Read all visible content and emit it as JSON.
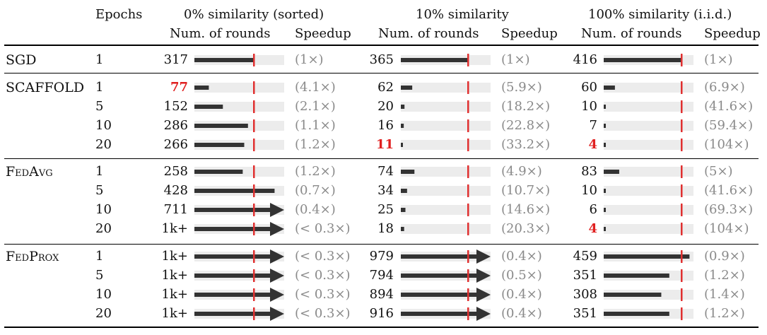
{
  "header": {
    "epochs": "Epochs",
    "groups": [
      {
        "title": "0% similarity (sorted)",
        "rounds": "Num. of rounds",
        "speedup": "Speedup"
      },
      {
        "title": "10% similarity",
        "rounds": "Num. of rounds",
        "speedup": "Speedup"
      },
      {
        "title": "100% similarity (i.i.d.)",
        "rounds": "Num. of rounds",
        "speedup": "Speedup"
      }
    ]
  },
  "sgd_baseline_rounds": [
    317,
    365,
    416
  ],
  "colors": {
    "bar": "#333333",
    "track": "#ececec",
    "marker": "#e03030",
    "best": "#e02020",
    "speed": "#8a8a8a"
  },
  "methods": [
    {
      "name": "SGD",
      "rows": [
        {
          "epochs": "1",
          "cells": [
            {
              "rounds": "317",
              "value": 317,
              "speedup": "(1×)",
              "best": false,
              "overflow": false
            },
            {
              "rounds": "365",
              "value": 365,
              "speedup": "(1×)",
              "best": false,
              "overflow": false
            },
            {
              "rounds": "416",
              "value": 416,
              "speedup": "(1×)",
              "best": false,
              "overflow": false
            }
          ]
        }
      ]
    },
    {
      "name": "SCAFFOLD",
      "rows": [
        {
          "epochs": "1",
          "cells": [
            {
              "rounds": "77",
              "value": 77,
              "speedup": "(4.1×)",
              "best": true,
              "overflow": false
            },
            {
              "rounds": "62",
              "value": 62,
              "speedup": "(5.9×)",
              "best": false,
              "overflow": false
            },
            {
              "rounds": "60",
              "value": 60,
              "speedup": "(6.9×)",
              "best": false,
              "overflow": false
            }
          ]
        },
        {
          "epochs": "5",
          "cells": [
            {
              "rounds": "152",
              "value": 152,
              "speedup": "(2.1×)",
              "best": false,
              "overflow": false
            },
            {
              "rounds": "20",
              "value": 20,
              "speedup": "(18.2×)",
              "best": false,
              "overflow": false
            },
            {
              "rounds": "10",
              "value": 10,
              "speedup": "(41.6×)",
              "best": false,
              "overflow": false
            }
          ]
        },
        {
          "epochs": "10",
          "cells": [
            {
              "rounds": "286",
              "value": 286,
              "speedup": "(1.1×)",
              "best": false,
              "overflow": false
            },
            {
              "rounds": "16",
              "value": 16,
              "speedup": "(22.8×)",
              "best": false,
              "overflow": false
            },
            {
              "rounds": "7",
              "value": 7,
              "speedup": "(59.4×)",
              "best": false,
              "overflow": false
            }
          ]
        },
        {
          "epochs": "20",
          "cells": [
            {
              "rounds": "266",
              "value": 266,
              "speedup": "(1.2×)",
              "best": false,
              "overflow": false
            },
            {
              "rounds": "11",
              "value": 11,
              "speedup": "(33.2×)",
              "best": true,
              "overflow": false
            },
            {
              "rounds": "4",
              "value": 4,
              "speedup": "(104×)",
              "best": true,
              "overflow": false
            }
          ]
        }
      ]
    },
    {
      "name": "FedAvg",
      "rows": [
        {
          "epochs": "1",
          "cells": [
            {
              "rounds": "258",
              "value": 258,
              "speedup": "(1.2×)",
              "best": false,
              "overflow": false
            },
            {
              "rounds": "74",
              "value": 74,
              "speedup": "(4.9×)",
              "best": false,
              "overflow": false
            },
            {
              "rounds": "83",
              "value": 83,
              "speedup": "(5×)",
              "best": false,
              "overflow": false
            }
          ]
        },
        {
          "epochs": "5",
          "cells": [
            {
              "rounds": "428",
              "value": 428,
              "speedup": "(0.7×)",
              "best": false,
              "overflow": false
            },
            {
              "rounds": "34",
              "value": 34,
              "speedup": "(10.7×)",
              "best": false,
              "overflow": false
            },
            {
              "rounds": "10",
              "value": 10,
              "speedup": "(41.6×)",
              "best": false,
              "overflow": false
            }
          ]
        },
        {
          "epochs": "10",
          "cells": [
            {
              "rounds": "711",
              "value": 711,
              "speedup": "(0.4×)",
              "best": false,
              "overflow": true
            },
            {
              "rounds": "25",
              "value": 25,
              "speedup": "(14.6×)",
              "best": false,
              "overflow": false
            },
            {
              "rounds": "6",
              "value": 6,
              "speedup": "(69.3×)",
              "best": false,
              "overflow": false
            }
          ]
        },
        {
          "epochs": "20",
          "cells": [
            {
              "rounds": "1k+",
              "value": 1000,
              "speedup": "(< 0.3×)",
              "best": false,
              "overflow": true
            },
            {
              "rounds": "18",
              "value": 18,
              "speedup": "(20.3×)",
              "best": false,
              "overflow": false
            },
            {
              "rounds": "4",
              "value": 4,
              "speedup": "(104×)",
              "best": true,
              "overflow": false
            }
          ]
        }
      ]
    },
    {
      "name": "FedProx",
      "rows": [
        {
          "epochs": "1",
          "cells": [
            {
              "rounds": "1k+",
              "value": 1000,
              "speedup": "(< 0.3×)",
              "best": false,
              "overflow": true
            },
            {
              "rounds": "979",
              "value": 979,
              "speedup": "(0.4×)",
              "best": false,
              "overflow": true
            },
            {
              "rounds": "459",
              "value": 459,
              "speedup": "(0.9×)",
              "best": false,
              "overflow": false
            }
          ]
        },
        {
          "epochs": "5",
          "cells": [
            {
              "rounds": "1k+",
              "value": 1000,
              "speedup": "(< 0.3×)",
              "best": false,
              "overflow": true
            },
            {
              "rounds": "794",
              "value": 794,
              "speedup": "(0.5×)",
              "best": false,
              "overflow": true
            },
            {
              "rounds": "351",
              "value": 351,
              "speedup": "(1.2×)",
              "best": false,
              "overflow": false
            }
          ]
        },
        {
          "epochs": "10",
          "cells": [
            {
              "rounds": "1k+",
              "value": 1000,
              "speedup": "(< 0.3×)",
              "best": false,
              "overflow": true
            },
            {
              "rounds": "894",
              "value": 894,
              "speedup": "(0.4×)",
              "best": false,
              "overflow": true
            },
            {
              "rounds": "308",
              "value": 308,
              "speedup": "(1.4×)",
              "best": false,
              "overflow": false
            }
          ]
        },
        {
          "epochs": "20",
          "cells": [
            {
              "rounds": "1k+",
              "value": 1000,
              "speedup": "(< 0.3×)",
              "best": false,
              "overflow": true
            },
            {
              "rounds": "916",
              "value": 916,
              "speedup": "(0.4×)",
              "best": false,
              "overflow": true
            },
            {
              "rounds": "351",
              "value": 351,
              "speedup": "(1.2×)",
              "best": false,
              "overflow": false
            }
          ]
        }
      ]
    }
  ]
}
